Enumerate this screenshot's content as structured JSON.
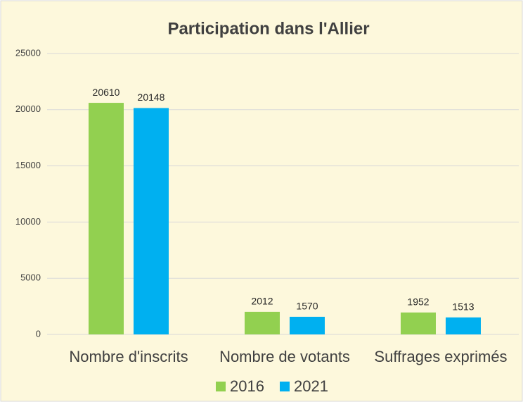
{
  "chart_data": {
    "type": "bar",
    "title": "Participation dans l'Allier",
    "categories": [
      "Nombre d'inscrits",
      "Nombre de votants",
      "Suffrages exprimés"
    ],
    "series": [
      {
        "name": "2016",
        "color": "#92d050",
        "values": [
          20610,
          2012,
          1952
        ]
      },
      {
        "name": "2021",
        "color": "#00b0f0",
        "values": [
          20148,
          1570,
          1513
        ]
      }
    ],
    "ylim": [
      0,
      25000
    ],
    "yticks": [
      0,
      5000,
      10000,
      15000,
      20000,
      25000
    ],
    "grid": true,
    "legend": "bottom"
  }
}
